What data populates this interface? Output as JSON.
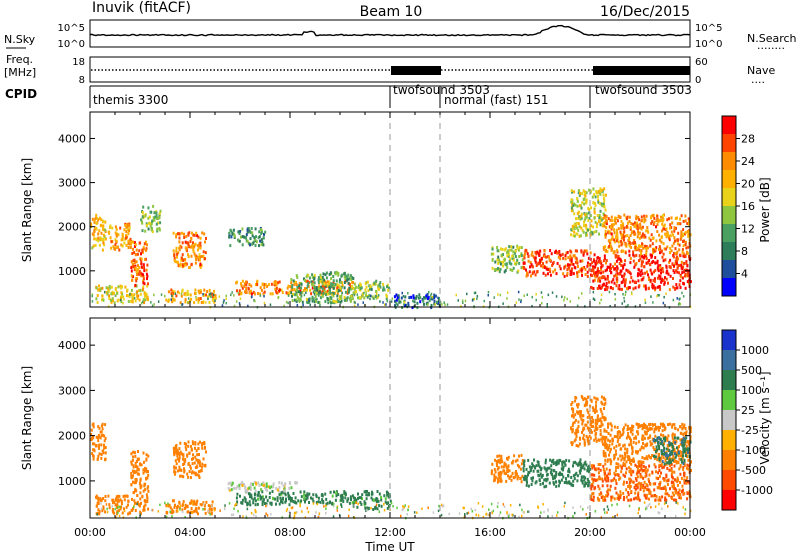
{
  "header": {
    "station": "Inuvik (fitACF)",
    "beam": "Beam 10",
    "date": "16/Dec/2015"
  },
  "left_labels": {
    "nsky": "N.Sky",
    "freq1": "Freq.",
    "freq2": "[MHz]",
    "cpid": "CPID"
  },
  "right_labels": {
    "nsearch": "N.Search",
    "nsearch_dots": "........",
    "nave": "Nave",
    "nave_dots": "...."
  },
  "noise_axis": {
    "left_ticks": [
      "10^5",
      "10^0"
    ],
    "right_ticks": [
      "10^5",
      "10^0"
    ]
  },
  "freq_axis": {
    "left_ticks": [
      "18",
      "8"
    ],
    "right_ticks": [
      "60",
      "0"
    ]
  },
  "cpid_segments": [
    {
      "label": "themis 3300",
      "start": "00:00",
      "end": "12:00"
    },
    {
      "label": "twofsound 3503",
      "start": "12:00",
      "end": "14:00"
    },
    {
      "label": "normal (fast) 151",
      "start": "14:00",
      "end": "20:00"
    },
    {
      "label": "twofsound 3503",
      "start": "20:00",
      "end": "24:00"
    }
  ],
  "power_colorbar": {
    "label": "Power [dB]",
    "ticks": [
      "28",
      "24",
      "20",
      "16",
      "12",
      "8",
      "4"
    ],
    "colors": [
      "#ff0000",
      "#ff4400",
      "#ff8c00",
      "#ffb000",
      "#e8d21a",
      "#8ec63f",
      "#4aa060",
      "#2e7d5a",
      "#1f4f9c",
      "#0000ff"
    ]
  },
  "velocity_colorbar": {
    "label": "Velocity [m s⁻¹]",
    "ticks": [
      "1000",
      "500",
      "100",
      "25",
      "-25",
      "-100",
      "-500",
      "-1000"
    ],
    "colors": [
      "#1a33cc",
      "#3a6fa0",
      "#2e7d4f",
      "#5ec93f",
      "#c8c8c8",
      "#ffb000",
      "#ff8000",
      "#ff4a00",
      "#ff0000"
    ]
  },
  "chart_data": {
    "type": "heatmap",
    "xlabel": "Time UT",
    "ylabel": "Slant Range [km]",
    "x_ticks": [
      "00:00",
      "04:00",
      "08:00",
      "12:00",
      "16:00",
      "20:00",
      "00:00"
    ],
    "y_ticks": [
      "1000",
      "2000",
      "3000",
      "4000"
    ],
    "xlim_hours": [
      0,
      24
    ],
    "ylim_km": [
      180,
      4600
    ],
    "vertical_markers_hours": [
      12,
      14,
      20
    ],
    "panels": [
      {
        "name": "Power",
        "units": "dB",
        "echo_regions": [
          {
            "t0": 0.0,
            "t1": 0.6,
            "r0": 1500,
            "r1": 2300,
            "value": 20
          },
          {
            "t0": 0.2,
            "t1": 2.3,
            "r0": 300,
            "r1": 700,
            "value": 18
          },
          {
            "t0": 0.7,
            "t1": 1.6,
            "r0": 1500,
            "r1": 2100,
            "value": 22
          },
          {
            "t0": 1.6,
            "t1": 2.3,
            "r0": 700,
            "r1": 1700,
            "value": 26
          },
          {
            "t0": 2.0,
            "t1": 2.8,
            "r0": 1900,
            "r1": 2500,
            "value": 14
          },
          {
            "t0": 3.3,
            "t1": 4.6,
            "r0": 1100,
            "r1": 1900,
            "value": 24
          },
          {
            "t0": 3.0,
            "t1": 5.0,
            "r0": 300,
            "r1": 600,
            "value": 22
          },
          {
            "t0": 5.5,
            "t1": 7.0,
            "r0": 1600,
            "r1": 2000,
            "value": 10
          },
          {
            "t0": 5.8,
            "t1": 10.5,
            "r0": 500,
            "r1": 800,
            "value": 24
          },
          {
            "t0": 8.0,
            "t1": 10.5,
            "r0": 300,
            "r1": 1000,
            "value": 12
          },
          {
            "t0": 10.5,
            "t1": 12.0,
            "r0": 400,
            "r1": 800,
            "value": 14
          },
          {
            "t0": 12.0,
            "t1": 14.0,
            "r0": 200,
            "r1": 500,
            "value": 6
          },
          {
            "t0": 16.0,
            "t1": 17.3,
            "r0": 1000,
            "r1": 1600,
            "value": 14
          },
          {
            "t0": 17.3,
            "t1": 20.0,
            "r0": 900,
            "r1": 1500,
            "value": 28
          },
          {
            "t0": 19.2,
            "t1": 20.6,
            "r0": 1800,
            "r1": 2900,
            "value": 16
          },
          {
            "t0": 20.0,
            "t1": 24.0,
            "r0": 600,
            "r1": 1400,
            "value": 30
          },
          {
            "t0": 20.5,
            "t1": 24.0,
            "r0": 1400,
            "r1": 2300,
            "value": 24
          }
        ]
      },
      {
        "name": "Velocity",
        "units": "m s-1",
        "echo_regions": [
          {
            "t0": 0.0,
            "t1": 0.6,
            "r0": 1500,
            "r1": 2300,
            "value": -300
          },
          {
            "t0": 0.2,
            "t1": 2.3,
            "r0": 300,
            "r1": 700,
            "value": -200
          },
          {
            "t0": 1.6,
            "t1": 2.3,
            "r0": 700,
            "r1": 1700,
            "value": -300
          },
          {
            "t0": 3.3,
            "t1": 4.6,
            "r0": 1100,
            "r1": 1900,
            "value": -300
          },
          {
            "t0": 3.0,
            "t1": 5.0,
            "r0": 300,
            "r1": 600,
            "value": -200
          },
          {
            "t0": 5.8,
            "t1": 10.5,
            "r0": 500,
            "r1": 800,
            "value": 150
          },
          {
            "t0": 5.5,
            "t1": 8.5,
            "r0": 800,
            "r1": 1000,
            "value": 0
          },
          {
            "t0": 10.5,
            "t1": 12.0,
            "r0": 400,
            "r1": 800,
            "value": 150
          },
          {
            "t0": 16.0,
            "t1": 17.3,
            "r0": 1000,
            "r1": 1600,
            "value": -300
          },
          {
            "t0": 17.3,
            "t1": 20.0,
            "r0": 900,
            "r1": 1500,
            "value": 200
          },
          {
            "t0": 19.2,
            "t1": 20.6,
            "r0": 1800,
            "r1": 2900,
            "value": -300
          },
          {
            "t0": 20.0,
            "t1": 24.0,
            "r0": 600,
            "r1": 1400,
            "value": -500
          },
          {
            "t0": 20.5,
            "t1": 24.0,
            "r0": 1400,
            "r1": 2300,
            "value": -200
          },
          {
            "t0": 22.5,
            "t1": 24.0,
            "r0": 1400,
            "r1": 2000,
            "value": 400
          }
        ]
      }
    ]
  }
}
